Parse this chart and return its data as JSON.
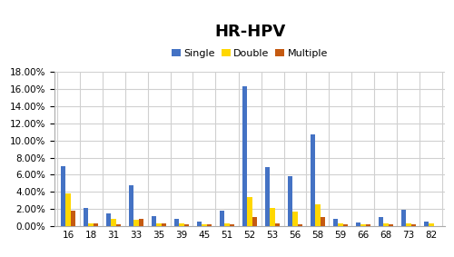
{
  "title": "HR-HPV",
  "categories": [
    "16",
    "18",
    "31",
    "33",
    "35",
    "39",
    "45",
    "51",
    "52",
    "53",
    "56",
    "58",
    "59",
    "66",
    "68",
    "73",
    "82"
  ],
  "single": [
    0.07,
    0.021,
    0.015,
    0.048,
    0.012,
    0.008,
    0.005,
    0.018,
    0.163,
    0.069,
    0.058,
    0.107,
    0.008,
    0.004,
    0.011,
    0.019,
    0.005
  ],
  "double": [
    0.038,
    0.003,
    0.008,
    0.007,
    0.003,
    0.003,
    0.002,
    0.003,
    0.034,
    0.021,
    0.017,
    0.025,
    0.003,
    0.002,
    0.003,
    0.003,
    0.003
  ],
  "multiple": [
    0.018,
    0.003,
    0.002,
    0.008,
    0.003,
    0.002,
    0.002,
    0.002,
    0.011,
    0.003,
    0.002,
    0.011,
    0.002,
    0.002,
    0.002,
    0.002,
    0.0
  ],
  "colors": {
    "single": "#4472C4",
    "double": "#FFD700",
    "multiple": "#C55A11"
  },
  "ylim": [
    0,
    0.18
  ],
  "yticks": [
    0.0,
    0.02,
    0.04,
    0.06,
    0.08,
    0.1,
    0.12,
    0.14,
    0.16,
    0.18
  ],
  "legend_labels": [
    "Single",
    "Double",
    "Multiple"
  ],
  "bar_width": 0.22,
  "grid_color": "#D0D0D0",
  "bg_color": "#FFFFFF",
  "title_fontsize": 13,
  "tick_fontsize": 7.5,
  "legend_fontsize": 8
}
